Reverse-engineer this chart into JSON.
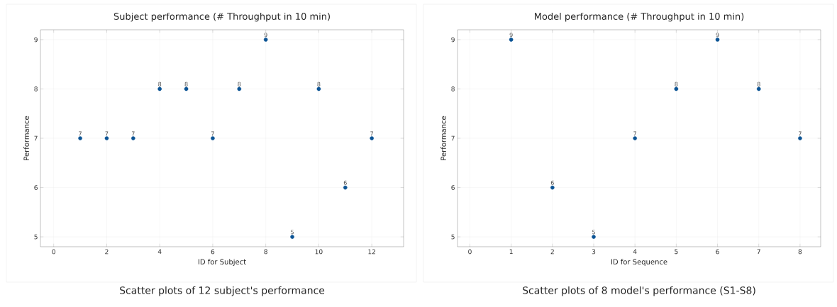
{
  "chart_data": [
    {
      "type": "scatter",
      "title": "Subject performance (# Throughput in 10 min)",
      "xlabel": "ID for Subject",
      "ylabel": "Performance",
      "x": [
        1,
        2,
        3,
        4,
        5,
        6,
        7,
        8,
        9,
        10,
        11,
        12
      ],
      "values": [
        7,
        7,
        7,
        8,
        8,
        7,
        8,
        9,
        5,
        8,
        6,
        7
      ],
      "color": "#0b5394",
      "marker": "circle",
      "data_labels": true,
      "grid": true,
      "xlim": [
        -0.5,
        13.2
      ],
      "xticks": [
        0,
        2,
        4,
        6,
        8,
        10,
        12
      ],
      "ylim": [
        4.8,
        9.2
      ],
      "yticks": [
        5,
        6,
        7,
        8,
        9
      ],
      "annotations": [
        "Scatter plots of 12 subject's performance"
      ]
    },
    {
      "type": "scatter",
      "title": "Model performance (# Throughput in 10 min)",
      "xlabel": "ID for Sequence",
      "ylabel": "Performance",
      "x": [
        1,
        2,
        3,
        4,
        5,
        6,
        7,
        8
      ],
      "values": [
        9,
        6,
        5,
        7,
        8,
        9,
        8,
        7
      ],
      "color": "#0b5394",
      "marker": "circle",
      "data_labels": true,
      "grid": true,
      "xlim": [
        -0.3,
        8.5
      ],
      "xticks": [
        0,
        1,
        2,
        3,
        4,
        5,
        6,
        7,
        8
      ],
      "ylim": [
        4.8,
        9.2
      ],
      "yticks": [
        5,
        6,
        7,
        8,
        9
      ],
      "annotations": [
        "Scatter plots of 8 model's performance (S1-S8)"
      ]
    }
  ]
}
